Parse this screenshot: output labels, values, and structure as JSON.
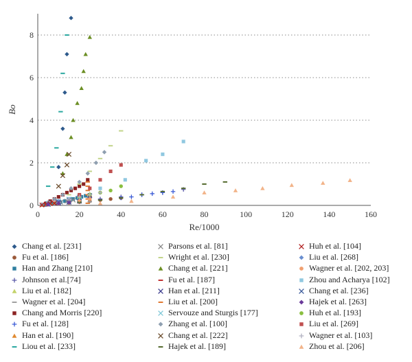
{
  "chart_data": {
    "type": "scatter",
    "xlabel": "Re/1000",
    "ylabel": "Bo",
    "xlim": [
      0,
      160
    ],
    "ylim": [
      0,
      9
    ],
    "xticks": [
      0,
      20,
      40,
      60,
      80,
      100,
      120,
      140,
      160
    ],
    "yticks": [
      0,
      2,
      4,
      6,
      8
    ],
    "grid": "horizontal-dotted",
    "legend_position": "bottom",
    "series": [
      {
        "name": "Chang et al. [231]",
        "color": "#2e5a8c",
        "marker": "diamond",
        "points": [
          [
            10,
            1.8
          ],
          [
            12,
            3.6
          ],
          [
            13,
            5.3
          ],
          [
            14,
            7.1
          ],
          [
            16,
            8.8
          ]
        ]
      },
      {
        "name": "Fu et al. [186]",
        "color": "#9b5a3a",
        "marker": "circle",
        "points": [
          [
            5,
            0.05
          ],
          [
            10,
            0.08
          ],
          [
            15,
            0.12
          ],
          [
            20,
            0.15
          ],
          [
            25,
            0.2
          ],
          [
            30,
            0.25
          ],
          [
            35,
            0.3
          ],
          [
            40,
            0.35
          ]
        ]
      },
      {
        "name": "Han and Zhang [210]",
        "color": "#2f7fa0",
        "marker": "square",
        "points": [
          [
            3,
            0.02
          ],
          [
            5,
            0.05
          ],
          [
            7,
            0.08
          ],
          [
            9,
            0.1
          ],
          [
            11,
            0.15
          ],
          [
            13,
            0.2
          ],
          [
            15,
            0.25
          ],
          [
            17,
            0.3
          ],
          [
            19,
            0.35
          ],
          [
            21,
            0.4
          ],
          [
            23,
            0.45
          ],
          [
            25,
            0.5
          ]
        ]
      },
      {
        "name": "Johnson et al.[74]",
        "color": "#5a5aa8",
        "marker": "plus",
        "points": [
          [
            10,
            0.1
          ],
          [
            20,
            0.2
          ],
          [
            30,
            0.3
          ],
          [
            40,
            0.4
          ],
          [
            50,
            0.5
          ],
          [
            60,
            0.6
          ],
          [
            70,
            0.75
          ]
        ]
      },
      {
        "name": "Liu et al. [182]",
        "color": "#c3d36a",
        "marker": "triangle",
        "points": [
          [
            5,
            0.1
          ],
          [
            10,
            0.2
          ],
          [
            15,
            0.3
          ],
          [
            20,
            0.4
          ],
          [
            25,
            0.55
          ]
        ]
      },
      {
        "name": "Wagner et al. [204]",
        "color": "#a0a0a0",
        "marker": "dash",
        "points": [
          [
            5,
            0.03
          ],
          [
            10,
            0.06
          ],
          [
            15,
            0.1
          ],
          [
            20,
            0.13
          ],
          [
            25,
            0.17
          ]
        ]
      },
      {
        "name": "Chang and Morris [220]",
        "color": "#8b2323",
        "marker": "square",
        "points": [
          [
            4,
            0.1
          ],
          [
            6,
            0.2
          ],
          [
            8,
            0.3
          ],
          [
            10,
            0.4
          ],
          [
            12,
            0.5
          ],
          [
            14,
            0.6
          ],
          [
            16,
            0.7
          ],
          [
            18,
            0.8
          ],
          [
            20,
            0.9
          ],
          [
            22,
            1.0
          ],
          [
            24,
            1.2
          ]
        ]
      },
      {
        "name": "Fu et al. [128]",
        "color": "#3b5bd6",
        "marker": "plus",
        "points": [
          [
            40,
            0.35
          ],
          [
            45,
            0.4
          ],
          [
            50,
            0.5
          ],
          [
            55,
            0.55
          ],
          [
            60,
            0.6
          ],
          [
            65,
            0.65
          ]
        ]
      },
      {
        "name": "Han et al. [190]",
        "color": "#e08a30",
        "marker": "triangle",
        "points": [
          [
            2,
            0.02
          ],
          [
            4,
            0.05
          ],
          [
            6,
            0.08
          ],
          [
            8,
            0.12
          ],
          [
            10,
            0.15
          ]
        ]
      },
      {
        "name": "Liou et al. [233]",
        "color": "#2aa8a0",
        "marker": "dash",
        "points": [
          [
            5,
            0.9
          ],
          [
            7,
            1.8
          ],
          [
            9,
            2.7
          ],
          [
            11,
            4.4
          ],
          [
            12,
            6.2
          ],
          [
            14,
            8.0
          ]
        ]
      },
      {
        "name": "Parsons et al. [81]",
        "color": "#888888",
        "marker": "cross",
        "points": [
          [
            5,
            0.05
          ],
          [
            8,
            0.1
          ],
          [
            11,
            0.15
          ],
          [
            14,
            0.2
          ],
          [
            17,
            0.25
          ],
          [
            20,
            0.3
          ]
        ]
      },
      {
        "name": "Wright et al. [230]",
        "color": "#c2d48a",
        "marker": "dash",
        "points": [
          [
            15,
            0.5
          ],
          [
            20,
            1.0
          ],
          [
            25,
            1.6
          ],
          [
            30,
            2.2
          ],
          [
            35,
            2.8
          ],
          [
            40,
            3.5
          ]
        ]
      },
      {
        "name": "Chang et al. [221]",
        "color": "#6b8e23",
        "marker": "triangle",
        "points": [
          [
            12,
            1.5
          ],
          [
            14,
            2.4
          ],
          [
            16,
            3.2
          ],
          [
            17,
            4.0
          ],
          [
            19,
            4.8
          ],
          [
            21,
            5.5
          ],
          [
            22,
            6.3
          ],
          [
            23,
            7.1
          ],
          [
            25,
            7.9
          ]
        ]
      },
      {
        "name": "Fu et al. [187]",
        "color": "#c03030",
        "marker": "dash",
        "points": [
          [
            10,
            0.1
          ],
          [
            15,
            0.2
          ],
          [
            20,
            0.3
          ],
          [
            25,
            0.4
          ]
        ]
      },
      {
        "name": "Han et al. [211]",
        "color": "#3a3a8c",
        "marker": "cross",
        "points": [
          [
            5,
            0.05
          ],
          [
            10,
            0.1
          ],
          [
            15,
            0.15
          ],
          [
            20,
            0.2
          ]
        ]
      },
      {
        "name": "Liu et al. [200]",
        "color": "#e07830",
        "marker": "dash",
        "points": [
          [
            24,
            0.1
          ],
          [
            24,
            0.3
          ],
          [
            24,
            0.5
          ],
          [
            24,
            0.7
          ],
          [
            24,
            0.9
          ],
          [
            24,
            1.1
          ]
        ]
      },
      {
        "name": "Servouze and Sturgis [177]",
        "color": "#7ec8d8",
        "marker": "cross",
        "points": [
          [
            5,
            0.1
          ],
          [
            10,
            0.2
          ],
          [
            15,
            0.3
          ],
          [
            20,
            0.4
          ]
        ]
      },
      {
        "name": "Zhang et al. [100]",
        "color": "#8f9fb0",
        "marker": "diamond",
        "points": [
          [
            2,
            0.05
          ],
          [
            5,
            0.15
          ],
          [
            8,
            0.3
          ],
          [
            12,
            0.5
          ],
          [
            16,
            0.8
          ],
          [
            20,
            1.1
          ],
          [
            24,
            1.5
          ],
          [
            28,
            2.0
          ],
          [
            32,
            2.5
          ]
        ]
      },
      {
        "name": "Chang et al. [222]",
        "color": "#6a4a2a",
        "marker": "cross",
        "points": [
          [
            10,
            0.9
          ],
          [
            12,
            1.4
          ],
          [
            14,
            1.9
          ],
          [
            15,
            2.4
          ]
        ]
      },
      {
        "name": "Hajek et al. [189]",
        "color": "#556b2f",
        "marker": "dash",
        "points": [
          [
            20,
            0.15
          ],
          [
            30,
            0.25
          ],
          [
            40,
            0.35
          ],
          [
            50,
            0.5
          ],
          [
            60,
            0.65
          ],
          [
            70,
            0.8
          ],
          [
            80,
            1.0
          ],
          [
            90,
            1.1
          ]
        ]
      },
      {
        "name": "Huh et al. [104]",
        "color": "#b02020",
        "marker": "cross",
        "points": [
          [
            2,
            0.02
          ],
          [
            4,
            0.05
          ],
          [
            6,
            0.08
          ],
          [
            8,
            0.1
          ]
        ]
      },
      {
        "name": "Liu et al. [268]",
        "color": "#6a8fd0",
        "marker": "diamond",
        "points": [
          [
            10,
            0.2
          ],
          [
            15,
            0.3
          ],
          [
            20,
            0.4
          ]
        ]
      },
      {
        "name": "Wagner et al. [202, 203]",
        "color": "#f0a070",
        "marker": "circle",
        "points": [
          [
            10,
            0.1
          ],
          [
            15,
            0.2
          ],
          [
            20,
            0.25
          ],
          [
            25,
            0.3
          ]
        ]
      },
      {
        "name": "Zhou and Acharya [102]",
        "color": "#90c8e0",
        "marker": "square",
        "points": [
          [
            20,
            0.4
          ],
          [
            30,
            0.8
          ],
          [
            42,
            1.2
          ],
          [
            52,
            2.1
          ],
          [
            60,
            2.4
          ],
          [
            70,
            3.0
          ]
        ]
      },
      {
        "name": "Chang et al. [236]",
        "color": "#3a5a9a",
        "marker": "cross",
        "points": [
          [
            10,
            0.15
          ],
          [
            15,
            0.25
          ],
          [
            20,
            0.35
          ],
          [
            25,
            0.45
          ]
        ]
      },
      {
        "name": "Hajek et al. [263]",
        "color": "#6a3a9a",
        "marker": "diamond",
        "points": [
          [
            5,
            0.05
          ],
          [
            10,
            0.1
          ],
          [
            15,
            0.15
          ]
        ]
      },
      {
        "name": "Huh et al. [193]",
        "color": "#8abf40",
        "marker": "circle",
        "points": [
          [
            20,
            0.4
          ],
          [
            25,
            0.5
          ],
          [
            30,
            0.6
          ],
          [
            35,
            0.7
          ],
          [
            40,
            0.9
          ]
        ]
      },
      {
        "name": "Liu et al. [269]",
        "color": "#c05050",
        "marker": "square",
        "points": [
          [
            20,
            0.5
          ],
          [
            25,
            0.8
          ],
          [
            30,
            1.2
          ],
          [
            35,
            1.6
          ],
          [
            40,
            1.9
          ]
        ]
      },
      {
        "name": "Wagner et al. [103]",
        "color": "#b0b0c0",
        "marker": "plus",
        "points": [
          [
            15,
            0.3
          ],
          [
            20,
            0.4
          ],
          [
            25,
            0.5
          ],
          [
            30,
            0.6
          ]
        ]
      },
      {
        "name": "Zhou et al. [206]",
        "color": "#f2b48a",
        "marker": "triangle",
        "points": [
          [
            30,
            0.1
          ],
          [
            45,
            0.2
          ],
          [
            65,
            0.4
          ],
          [
            80,
            0.6
          ],
          [
            95,
            0.7
          ],
          [
            108,
            0.8
          ],
          [
            122,
            0.95
          ],
          [
            137,
            1.05
          ],
          [
            150,
            1.18
          ]
        ]
      }
    ]
  }
}
